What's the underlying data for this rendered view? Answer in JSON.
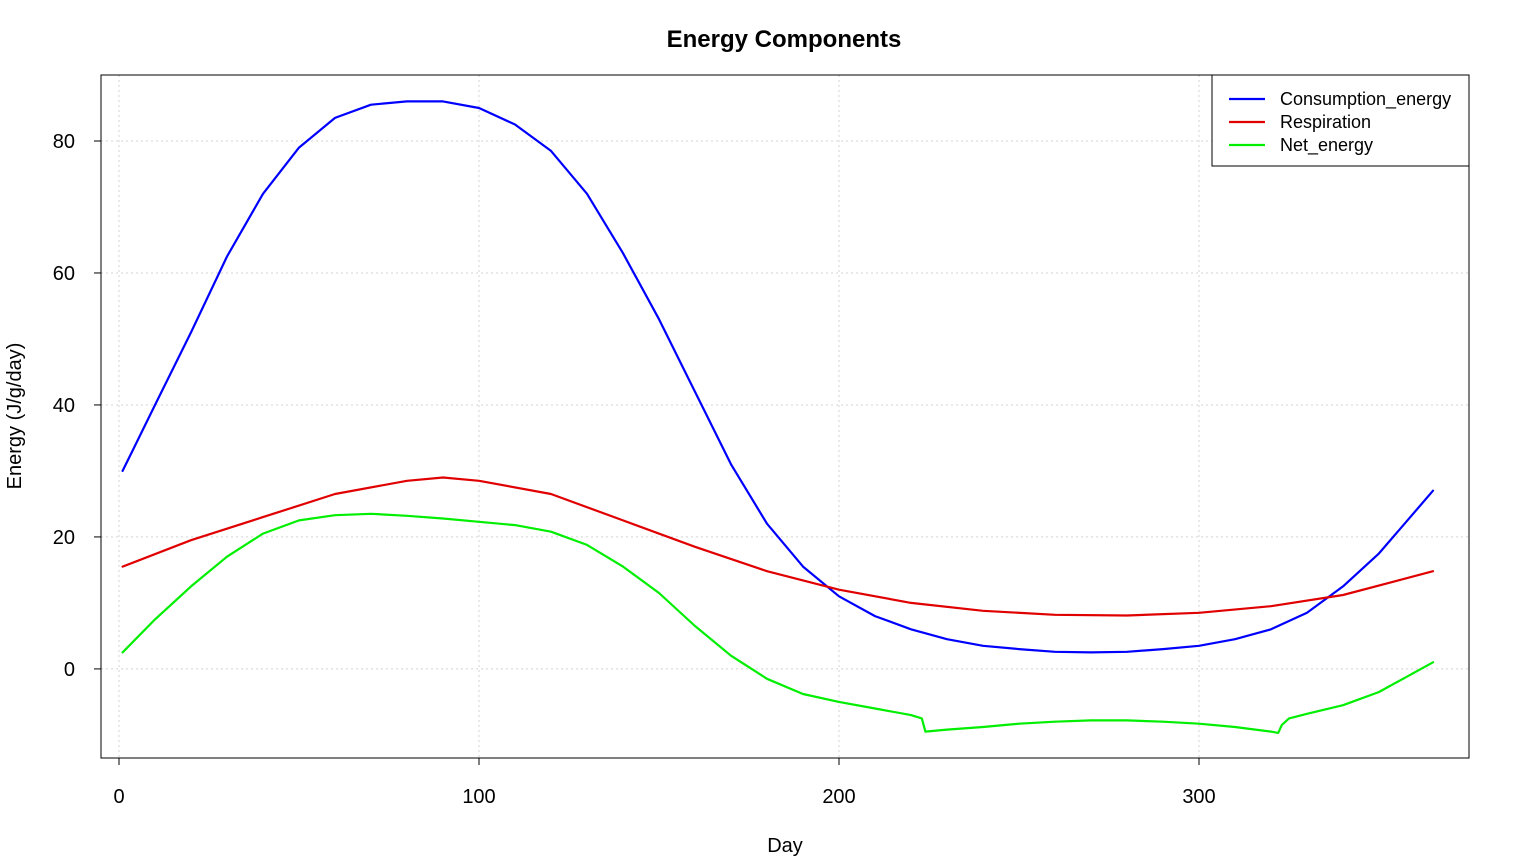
{
  "chart_data": {
    "type": "line",
    "title": "Energy Components",
    "xlabel": "Day",
    "ylabel": "Energy (J/g/day)",
    "xlim": [
      -5,
      375
    ],
    "ylim": [
      -13.5,
      90
    ],
    "xticks": [
      0,
      100,
      200,
      300
    ],
    "yticks": [
      0,
      20,
      40,
      60,
      80
    ],
    "grid": true,
    "legend": "top-right",
    "series": [
      {
        "name": "Consumption_energy",
        "color": "#0000ff",
        "x": [
          1,
          10,
          20,
          30,
          40,
          50,
          60,
          70,
          80,
          90,
          100,
          110,
          120,
          130,
          140,
          150,
          160,
          170,
          180,
          190,
          200,
          210,
          220,
          230,
          240,
          250,
          260,
          270,
          280,
          290,
          300,
          310,
          320,
          330,
          340,
          350,
          365
        ],
        "y": [
          30,
          40,
          51,
          62.5,
          72,
          79,
          83.5,
          85.5,
          86,
          86,
          85,
          82.5,
          78.5,
          72,
          63,
          53,
          42,
          31,
          22,
          15.5,
          11,
          8,
          6,
          4.5,
          3.5,
          3,
          2.6,
          2.5,
          2.6,
          3,
          3.5,
          4.5,
          6,
          8.5,
          12.5,
          17.5,
          27
        ]
      },
      {
        "name": "Respiration",
        "color": "#e00000",
        "x": [
          1,
          20,
          40,
          60,
          80,
          90,
          100,
          120,
          140,
          160,
          180,
          200,
          220,
          240,
          260,
          280,
          300,
          320,
          340,
          365
        ],
        "y": [
          15.5,
          19.5,
          23,
          26.5,
          28.5,
          29,
          28.5,
          26.5,
          22.5,
          18.5,
          14.8,
          12,
          10,
          8.8,
          8.2,
          8.1,
          8.5,
          9.5,
          11.2,
          14.8
        ]
      },
      {
        "name": "Net_energy",
        "color": "#00ee00",
        "x": [
          1,
          10,
          20,
          30,
          40,
          50,
          60,
          70,
          80,
          90,
          100,
          110,
          120,
          130,
          140,
          150,
          160,
          170,
          180,
          190,
          200,
          210,
          220,
          223,
          224,
          230,
          240,
          250,
          260,
          270,
          280,
          290,
          300,
          310,
          320,
          322,
          323,
          325,
          330,
          340,
          350,
          365
        ],
        "y": [
          2.5,
          7.5,
          12.5,
          17,
          20.5,
          22.5,
          23.3,
          23.5,
          23.2,
          22.8,
          22.3,
          21.8,
          20.8,
          18.8,
          15.5,
          11.5,
          6.5,
          2,
          -1.5,
          -3.8,
          -5,
          -6,
          -7,
          -7.5,
          -9.5,
          -9.2,
          -8.8,
          -8.3,
          -8,
          -7.8,
          -7.8,
          -8,
          -8.3,
          -8.8,
          -9.5,
          -9.7,
          -8.5,
          -7.5,
          -6.8,
          -5.5,
          -3.5,
          1
        ]
      }
    ]
  }
}
